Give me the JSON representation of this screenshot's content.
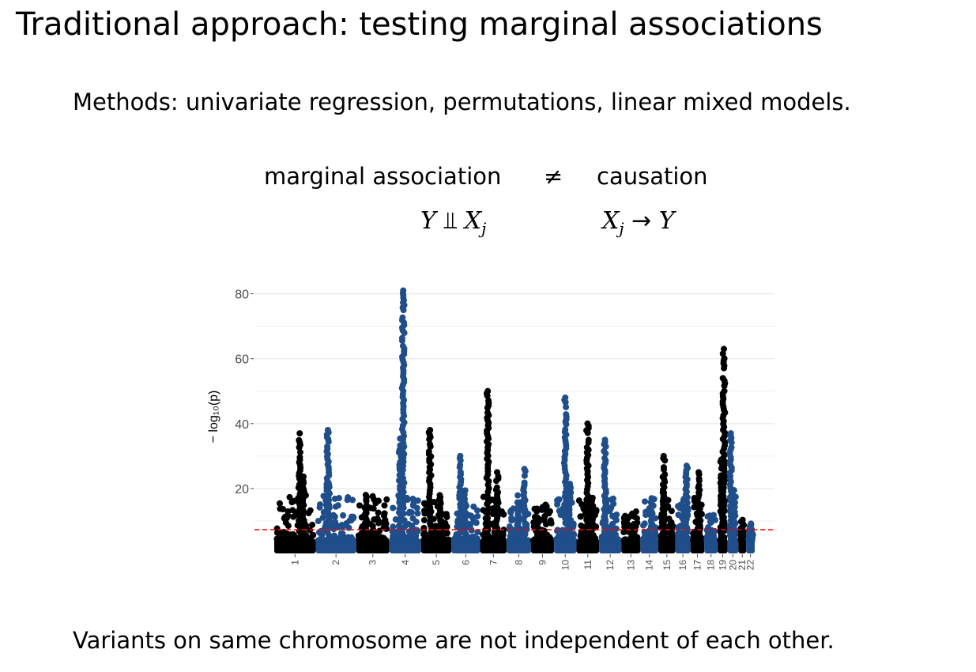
{
  "slide": {
    "title": "Traditional approach: testing marginal associations",
    "methods": "Methods: univariate regression, permutations, linear mixed models.",
    "assoc_left": "marginal association",
    "neq": "≠",
    "assoc_right": "causation",
    "math_left": {
      "y": "Y",
      "indep": "⫫",
      "x": "X",
      "sub": "j"
    },
    "math_right": {
      "x": "X",
      "sub": "j",
      "arrow": "→",
      "y": "Y"
    },
    "footer": "Variants on same chromosome are not independent of each other."
  },
  "colors": {
    "odd_chromosome": "#000000",
    "even_chromosome": "#1f4e8a",
    "threshold": "#ff0000",
    "grid": "#ebebeb"
  },
  "chart_data": {
    "type": "scatter",
    "title": "",
    "xlabel": "",
    "ylabel": "− log₁₀(p)",
    "y_ticks": [
      "20",
      "40",
      "60",
      "80"
    ],
    "y_tick_values": [
      20,
      40,
      60,
      80
    ],
    "ylim": [
      0,
      82
    ],
    "threshold": 7.3,
    "categories": [
      "1",
      "2",
      "3",
      "4",
      "5",
      "6",
      "7",
      "8",
      "9",
      "10",
      "11",
      "12",
      "13",
      "14",
      "15",
      "16",
      "17",
      "18",
      "19",
      "20",
      "21",
      "22"
    ],
    "chromosome_peaks": [
      37,
      38,
      18,
      81,
      38,
      30,
      50,
      26,
      11,
      48,
      40,
      35,
      9,
      17,
      30,
      27,
      25,
      8,
      63,
      37,
      7,
      6
    ],
    "grid": true,
    "legend": "none"
  }
}
